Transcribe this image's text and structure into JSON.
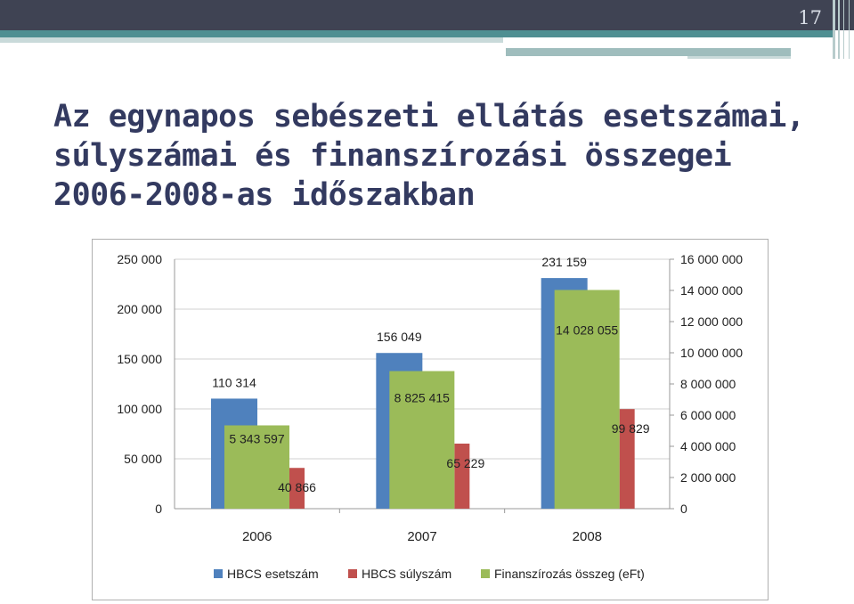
{
  "slide": {
    "page_number": "17",
    "title": "Az egynapos sebészeti ellátás esetszámai, súlyszámai és finanszírozási összegei 2006-2008-as időszakban",
    "colors": {
      "dark_bar": "#3f4353",
      "teal_bar": "#4f8f92",
      "title": "#333a60"
    }
  },
  "chart_data": {
    "type": "bar",
    "categories": [
      "2006",
      "2007",
      "2008"
    ],
    "series": [
      {
        "name": "HBCS esetszám",
        "axis": "left",
        "color": "#4f81bd",
        "values": [
          110314,
          156049,
          231159
        ],
        "labels": [
          "110 314",
          "156 049",
          "231 159"
        ]
      },
      {
        "name": "HBCS súlyszám",
        "axis": "left",
        "color": "#c0504d",
        "values": [
          40866,
          65229,
          99829
        ],
        "labels": [
          "40 866",
          "65 229",
          "99 829"
        ]
      },
      {
        "name": "Finanszírozás összeg (eFt)",
        "axis": "right",
        "color": "#9bbb59",
        "values": [
          5343597,
          8825415,
          14028055
        ],
        "labels": [
          "5 343 597",
          "8 825 415",
          "14 028 055"
        ]
      }
    ],
    "y_left": {
      "min": 0,
      "max": 250000,
      "ticks": [
        0,
        50000,
        100000,
        150000,
        200000,
        250000
      ],
      "tick_labels": [
        "0",
        "50 000",
        "100 000",
        "150 000",
        "200 000",
        "250 000"
      ]
    },
    "y_right": {
      "min": 0,
      "max": 16000000,
      "ticks": [
        0,
        2000000,
        4000000,
        6000000,
        8000000,
        10000000,
        12000000,
        14000000,
        16000000
      ],
      "tick_labels": [
        "0",
        "2 000 000",
        "4 000 000",
        "6 000 000",
        "8 000 000",
        "10 000 000",
        "12 000 000",
        "14 000 000",
        "16 000 000"
      ]
    },
    "grid": true,
    "legend": "bottom"
  }
}
